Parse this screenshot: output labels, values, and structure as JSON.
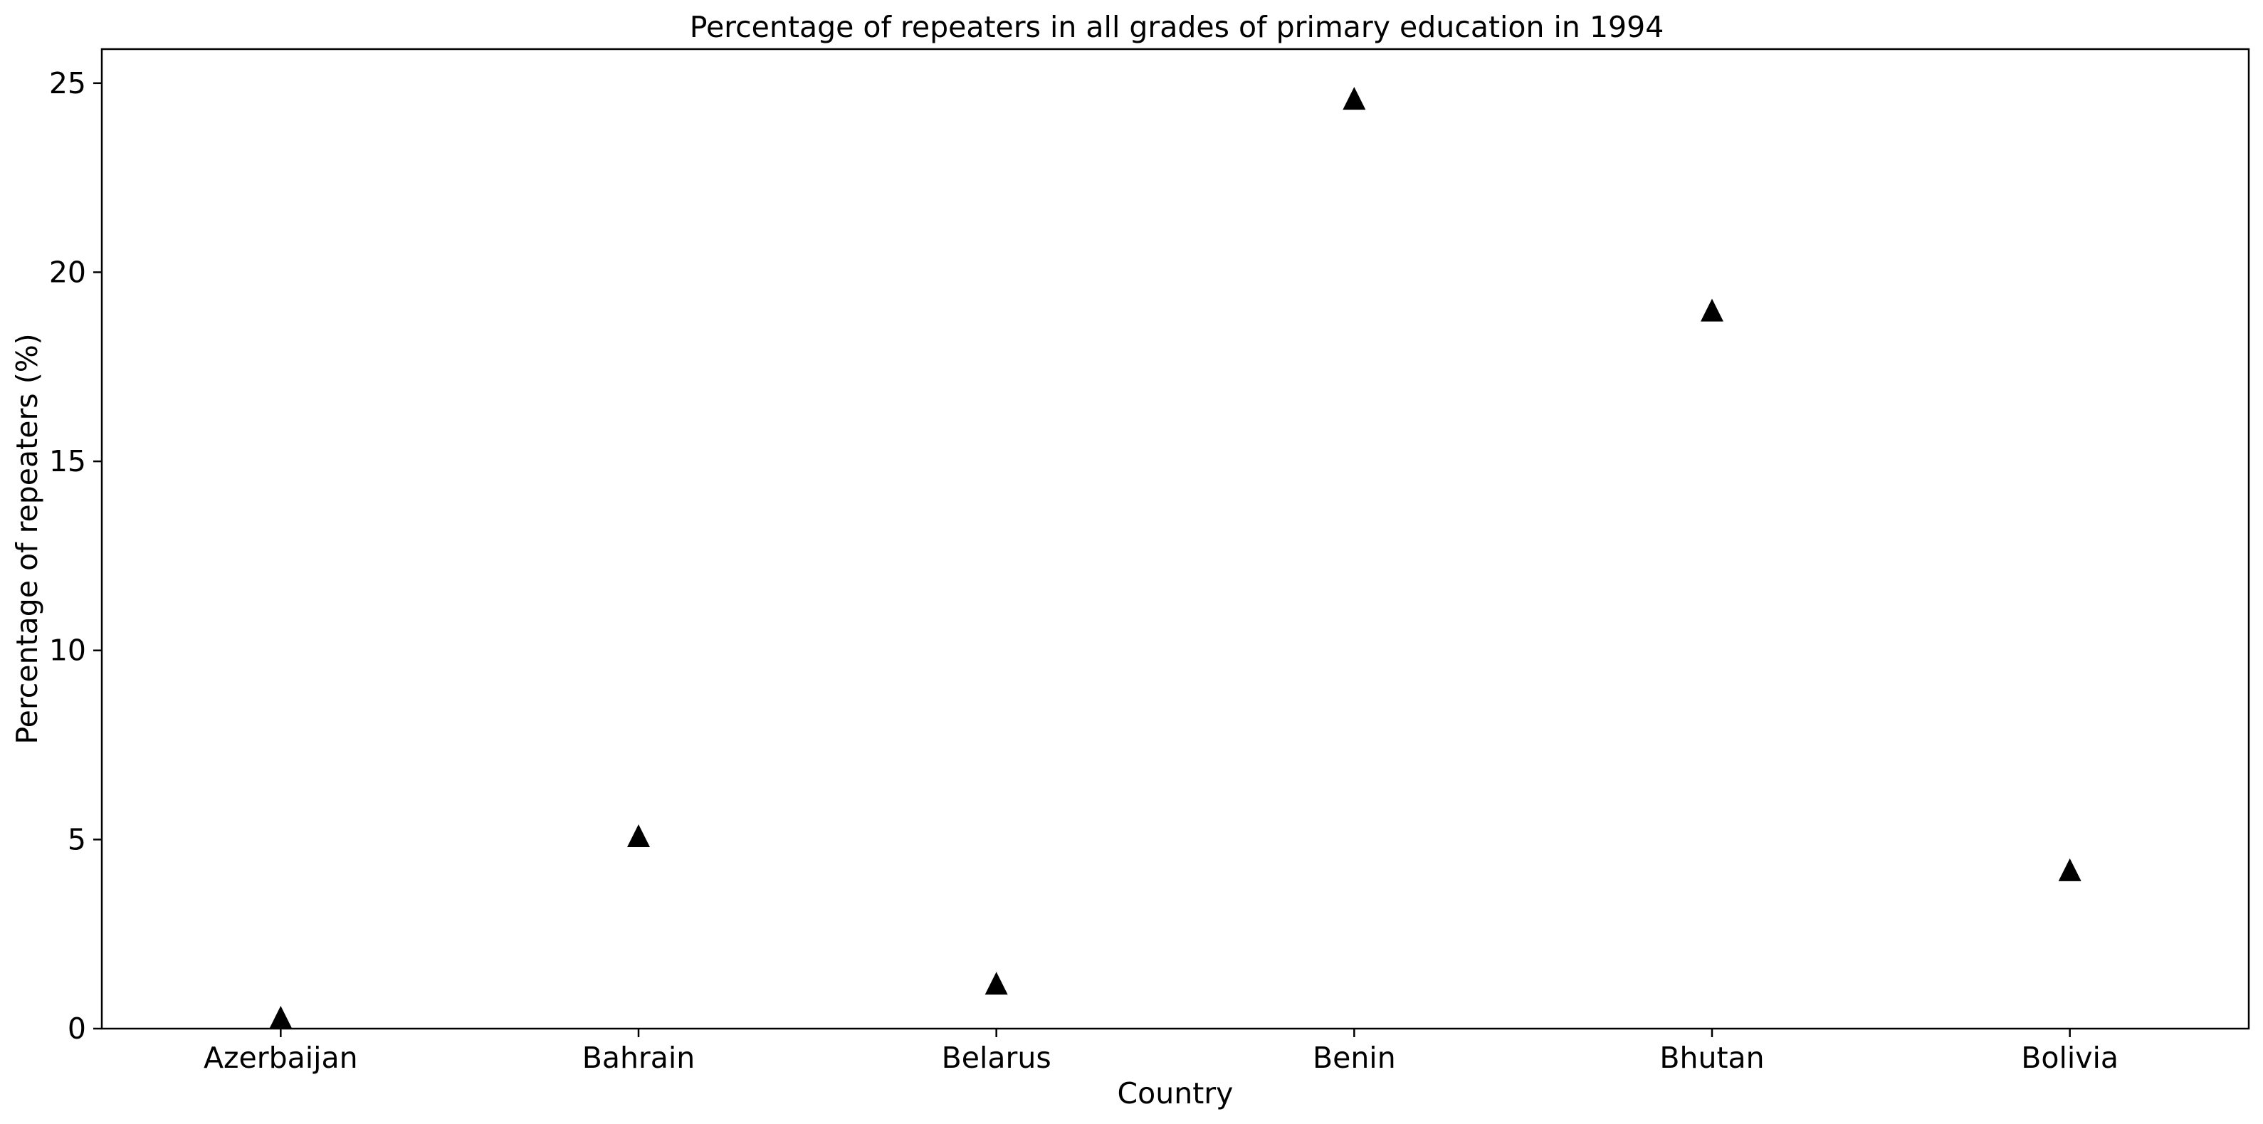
{
  "chart_data": {
    "type": "scatter",
    "title": "Percentage of repeaters in all grades of primary education in 1994",
    "xlabel": "Country",
    "ylabel": "Percentage of repeaters (%)",
    "categories": [
      "Azerbaijan",
      "Bahrain",
      "Belarus",
      "Benin",
      "Bhutan",
      "Bolivia"
    ],
    "values": [
      0.3,
      5.1,
      1.2,
      24.6,
      19.0,
      4.2
    ],
    "ylim": [
      0,
      25.9
    ],
    "yticks": [
      0,
      5,
      10,
      15,
      20,
      25
    ],
    "marker": "triangle",
    "marker_color": "#000000",
    "grid": false,
    "legend": "none"
  }
}
